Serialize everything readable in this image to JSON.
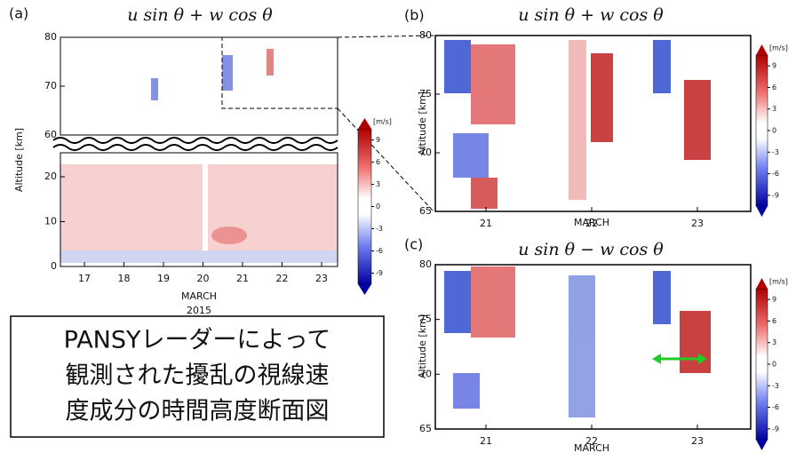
{
  "panels": [
    {
      "label": "(a)",
      "title": "u sin θ + w cos θ",
      "ylabel": "Altitude [km]",
      "xlabel": "MARCH",
      "year": "2015",
      "yticks_upper": [
        60,
        70,
        80
      ],
      "yticks_lower": [
        0,
        10,
        20
      ],
      "xticks": [
        17,
        18,
        19,
        20,
        21,
        22,
        23
      ]
    },
    {
      "label": "(b)",
      "title": "u sin θ + w cos θ",
      "ylabel": "Altitude [km]",
      "xlabel": "MARCH",
      "yticks": [
        65,
        70,
        75,
        80
      ],
      "xticks": [
        21,
        22,
        23
      ]
    },
    {
      "label": "(c)",
      "title": "u sin θ − w cos θ",
      "ylabel": "Altitude [km]",
      "xlabel": "MARCH",
      "yticks": [
        65,
        70,
        75,
        80
      ],
      "xticks": [
        21,
        22,
        23
      ]
    }
  ],
  "colorbar": {
    "unit": "[m/s]",
    "ticks": [
      9,
      6,
      3,
      0,
      -3,
      -6,
      -9
    ]
  },
  "caption": [
    "PANSYレーダーによって",
    "観測された擾乱の視線速",
    "度成分の時間高度断面図"
  ]
}
